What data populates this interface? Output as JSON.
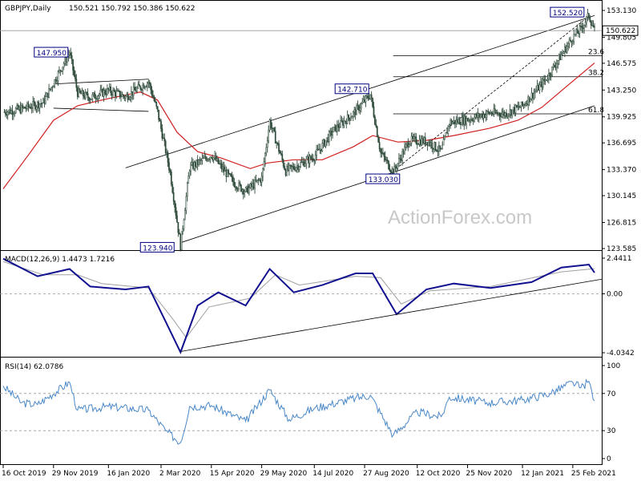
{
  "chart_data": [
    {
      "type": "line",
      "title": "GBPJPY,Daily",
      "ohlc": "150.521 150.792 150.386 150.622",
      "watermark": "ActionForex.com",
      "last_price_label": "150.622",
      "ylim": [
        123.585,
        153.13
      ],
      "y_ticks": [
        "153.130",
        "149.805",
        "146.575",
        "143.250",
        "139.925",
        "136.695",
        "133.370",
        "130.145",
        "126.815",
        "123.585"
      ],
      "x_labels": [
        "16 Oct 2019",
        "29 Nov 2019",
        "16 Jan 2020",
        "2 Mar 2020",
        "15 Apr 2020",
        "29 May 2020",
        "14 Jul 2020",
        "27 Aug 2020",
        "12 Oct 2020",
        "25 Nov 2020",
        "12 Jan 2021",
        "25 Feb 2021"
      ],
      "price_points": [
        {
          "x": "2019-10-16",
          "y": 140.5
        },
        {
          "x": "2019-11-01",
          "y": 140.9
        },
        {
          "x": "2019-11-20",
          "y": 141.7
        },
        {
          "x": "2019-12-13",
          "y": 147.95
        },
        {
          "x": "2019-12-20",
          "y": 142.9
        },
        {
          "x": "2019-12-31",
          "y": 142.3
        },
        {
          "x": "2020-01-16",
          "y": 143.2
        },
        {
          "x": "2020-01-31",
          "y": 142.4
        },
        {
          "x": "2020-02-20",
          "y": 144.3
        },
        {
          "x": "2020-02-28",
          "y": 140.5
        },
        {
          "x": "2020-03-10",
          "y": 133.0
        },
        {
          "x": "2020-03-19",
          "y": 123.94
        },
        {
          "x": "2020-03-27",
          "y": 133.6
        },
        {
          "x": "2020-04-15",
          "y": 135.2
        },
        {
          "x": "2020-05-05",
          "y": 131.7
        },
        {
          "x": "2020-05-15",
          "y": 130.7
        },
        {
          "x": "2020-05-29",
          "y": 132.3
        },
        {
          "x": "2020-06-05",
          "y": 139.4
        },
        {
          "x": "2020-06-19",
          "y": 133.2
        },
        {
          "x": "2020-07-01",
          "y": 134.0
        },
        {
          "x": "2020-07-14",
          "y": 135.0
        },
        {
          "x": "2020-07-31",
          "y": 138.3
        },
        {
          "x": "2020-08-17",
          "y": 140.3
        },
        {
          "x": "2020-09-01",
          "y": 142.71
        },
        {
          "x": "2020-09-10",
          "y": 135.5
        },
        {
          "x": "2020-09-21",
          "y": 133.03
        },
        {
          "x": "2020-10-05",
          "y": 137.0
        },
        {
          "x": "2020-10-21",
          "y": 136.9
        },
        {
          "x": "2020-11-02",
          "y": 135.6
        },
        {
          "x": "2020-11-09",
          "y": 139.2
        },
        {
          "x": "2020-11-25",
          "y": 139.6
        },
        {
          "x": "2020-12-14",
          "y": 140.4
        },
        {
          "x": "2020-12-28",
          "y": 140.3
        },
        {
          "x": "2021-01-12",
          "y": 141.3
        },
        {
          "x": "2021-02-01",
          "y": 144.5
        },
        {
          "x": "2021-02-25",
          "y": 149.8
        },
        {
          "x": "2021-03-04",
          "y": 150.8
        },
        {
          "x": "2021-03-11",
          "y": 152.52
        },
        {
          "x": "2021-03-16",
          "y": 150.622
        }
      ],
      "sma_label": "",
      "sma_color": "#d02020",
      "sma_points": [
        {
          "x": "2019-10-16",
          "y": 131.0
        },
        {
          "x": "2019-11-06",
          "y": 135.0
        },
        {
          "x": "2019-11-29",
          "y": 139.5
        },
        {
          "x": "2019-12-20",
          "y": 141.3
        },
        {
          "x": "2020-01-16",
          "y": 142.2
        },
        {
          "x": "2020-02-13",
          "y": 143.0
        },
        {
          "x": "2020-02-28",
          "y": 142.0
        },
        {
          "x": "2020-03-16",
          "y": 138.0
        },
        {
          "x": "2020-04-03",
          "y": 135.6
        },
        {
          "x": "2020-04-24",
          "y": 134.8
        },
        {
          "x": "2020-05-19",
          "y": 133.5
        },
        {
          "x": "2020-06-03",
          "y": 134.2
        },
        {
          "x": "2020-06-26",
          "y": 134.6
        },
        {
          "x": "2020-07-21",
          "y": 134.6
        },
        {
          "x": "2020-08-17",
          "y": 136.2
        },
        {
          "x": "2020-09-03",
          "y": 137.6
        },
        {
          "x": "2020-09-25",
          "y": 136.8
        },
        {
          "x": "2020-10-20",
          "y": 137.0
        },
        {
          "x": "2020-11-13",
          "y": 137.6
        },
        {
          "x": "2020-12-14",
          "y": 138.5
        },
        {
          "x": "2021-01-08",
          "y": 139.5
        },
        {
          "x": "2021-01-29",
          "y": 141.1
        },
        {
          "x": "2021-02-17",
          "y": 143.4
        },
        {
          "x": "2021-03-16",
          "y": 146.6
        }
      ],
      "price_color": "#2e4a3a",
      "annotations": [
        {
          "text": "147.950",
          "x": "2019-12-13",
          "y": 147.95,
          "side": "left"
        },
        {
          "text": "123.940",
          "x": "2020-03-19",
          "y": 123.94,
          "side": "left"
        },
        {
          "text": "142.710",
          "x": "2020-09-01",
          "y": 142.71,
          "side": "left"
        },
        {
          "text": "133.030",
          "x": "2020-09-21",
          "y": 133.03,
          "side": "left"
        },
        {
          "text": "152.520",
          "x": "2021-03-11",
          "y": 152.52,
          "side": "left"
        }
      ],
      "fib_levels": [
        {
          "label": "23.6",
          "y": 147.5
        },
        {
          "label": "38.2",
          "y": 144.9
        },
        {
          "label": "61.8",
          "y": 140.3
        }
      ],
      "fib_start": "2020-09-21",
      "grid": false,
      "channel_lines": [
        {
          "x1": "2020-01-31",
          "y1": 133.6,
          "x2": "2021-03-16",
          "y2": 152.5
        },
        {
          "x1": "2020-03-19",
          "y1": 124.3,
          "x2": "2021-03-16",
          "y2": 141.3
        },
        {
          "x1": "2020-09-21",
          "y1": 133.2,
          "x2": "2021-03-11",
          "y2": 152.4
        }
      ],
      "box_lines": [
        {
          "x1": "2019-11-29",
          "y1": 144.0,
          "x2": "2020-02-20",
          "y2": 144.6
        },
        {
          "x1": "2019-11-29",
          "y1": 141.0,
          "x2": "2020-02-20",
          "y2": 140.6
        }
      ]
    },
    {
      "type": "line",
      "title": "MACD(12,26,9) 1.4473 1.7216",
      "ylim": [
        -4.0342,
        2.4411
      ],
      "y_ticks": [
        "2.4411",
        "0.00",
        "-4.0342"
      ],
      "macd_color": "#101090",
      "signal_color": "#a0a0a0",
      "macd_points": [
        {
          "x": "2019-10-16",
          "y": 2.4
        },
        {
          "x": "2019-11-15",
          "y": 1.2
        },
        {
          "x": "2019-12-13",
          "y": 1.7
        },
        {
          "x": "2019-12-31",
          "y": 0.5
        },
        {
          "x": "2020-01-31",
          "y": 0.3
        },
        {
          "x": "2020-02-20",
          "y": 0.5
        },
        {
          "x": "2020-03-06",
          "y": -1.9
        },
        {
          "x": "2020-03-19",
          "y": -4.0
        },
        {
          "x": "2020-04-03",
          "y": -0.8
        },
        {
          "x": "2020-04-21",
          "y": 0.1
        },
        {
          "x": "2020-05-15",
          "y": -0.8
        },
        {
          "x": "2020-06-05",
          "y": 1.7
        },
        {
          "x": "2020-06-26",
          "y": 0.1
        },
        {
          "x": "2020-07-21",
          "y": 0.6
        },
        {
          "x": "2020-08-19",
          "y": 1.4
        },
        {
          "x": "2020-09-03",
          "y": 1.4
        },
        {
          "x": "2020-09-24",
          "y": -1.4
        },
        {
          "x": "2020-10-20",
          "y": 0.3
        },
        {
          "x": "2020-11-13",
          "y": 0.7
        },
        {
          "x": "2020-12-15",
          "y": 0.4
        },
        {
          "x": "2021-01-20",
          "y": 0.8
        },
        {
          "x": "2021-02-15",
          "y": 1.8
        },
        {
          "x": "2021-03-11",
          "y": 2.0
        },
        {
          "x": "2021-03-16",
          "y": 1.45
        }
      ],
      "signal_points": [
        {
          "x": "2019-10-16",
          "y": 2.2
        },
        {
          "x": "2019-11-20",
          "y": 1.3
        },
        {
          "x": "2019-12-20",
          "y": 1.3
        },
        {
          "x": "2020-01-10",
          "y": 0.7
        },
        {
          "x": "2020-02-20",
          "y": 0.4
        },
        {
          "x": "2020-03-13",
          "y": -1.8
        },
        {
          "x": "2020-03-24",
          "y": -3.0
        },
        {
          "x": "2020-04-13",
          "y": -0.9
        },
        {
          "x": "2020-05-19",
          "y": -0.3
        },
        {
          "x": "2020-06-10",
          "y": 1.3
        },
        {
          "x": "2020-07-01",
          "y": 0.6
        },
        {
          "x": "2020-08-19",
          "y": 1.2
        },
        {
          "x": "2020-09-10",
          "y": 1.1
        },
        {
          "x": "2020-09-28",
          "y": -0.7
        },
        {
          "x": "2020-10-23",
          "y": 0.2
        },
        {
          "x": "2020-12-15",
          "y": 0.5
        },
        {
          "x": "2021-02-15",
          "y": 1.5
        },
        {
          "x": "2021-03-16",
          "y": 1.72
        }
      ],
      "trendline": {
        "x1": "2020-03-19",
        "y1": -3.95,
        "x2": "2021-03-16",
        "y2": 1.0
      },
      "zero_line": true
    },
    {
      "type": "line",
      "title": "RSI(14) 62.0786",
      "ylim": [
        0,
        100
      ],
      "y_ticks": [
        "100",
        "70",
        "30",
        "0"
      ],
      "reference_levels": [
        70,
        30
      ],
      "rsi_color": "#4a88c8",
      "rsi_points": [
        {
          "x": "2019-10-16",
          "y": 78
        },
        {
          "x": "2019-11-01",
          "y": 60
        },
        {
          "x": "2019-11-15",
          "y": 58
        },
        {
          "x": "2019-12-13",
          "y": 82
        },
        {
          "x": "2019-12-20",
          "y": 52
        },
        {
          "x": "2020-01-16",
          "y": 56
        },
        {
          "x": "2020-02-20",
          "y": 52
        },
        {
          "x": "2020-03-06",
          "y": 30
        },
        {
          "x": "2020-03-19",
          "y": 17
        },
        {
          "x": "2020-03-27",
          "y": 56
        },
        {
          "x": "2020-04-15",
          "y": 57
        },
        {
          "x": "2020-05-15",
          "y": 40
        },
        {
          "x": "2020-06-05",
          "y": 74
        },
        {
          "x": "2020-06-22",
          "y": 42
        },
        {
          "x": "2020-07-14",
          "y": 54
        },
        {
          "x": "2020-08-19",
          "y": 65
        },
        {
          "x": "2020-09-01",
          "y": 68
        },
        {
          "x": "2020-09-21",
          "y": 25
        },
        {
          "x": "2020-10-12",
          "y": 50
        },
        {
          "x": "2020-11-02",
          "y": 45
        },
        {
          "x": "2020-11-09",
          "y": 66
        },
        {
          "x": "2020-12-14",
          "y": 60
        },
        {
          "x": "2021-01-12",
          "y": 63
        },
        {
          "x": "2021-02-05",
          "y": 70
        },
        {
          "x": "2021-02-25",
          "y": 82
        },
        {
          "x": "2021-03-04",
          "y": 76
        },
        {
          "x": "2021-03-11",
          "y": 83
        },
        {
          "x": "2021-03-16",
          "y": 62
        }
      ]
    }
  ]
}
